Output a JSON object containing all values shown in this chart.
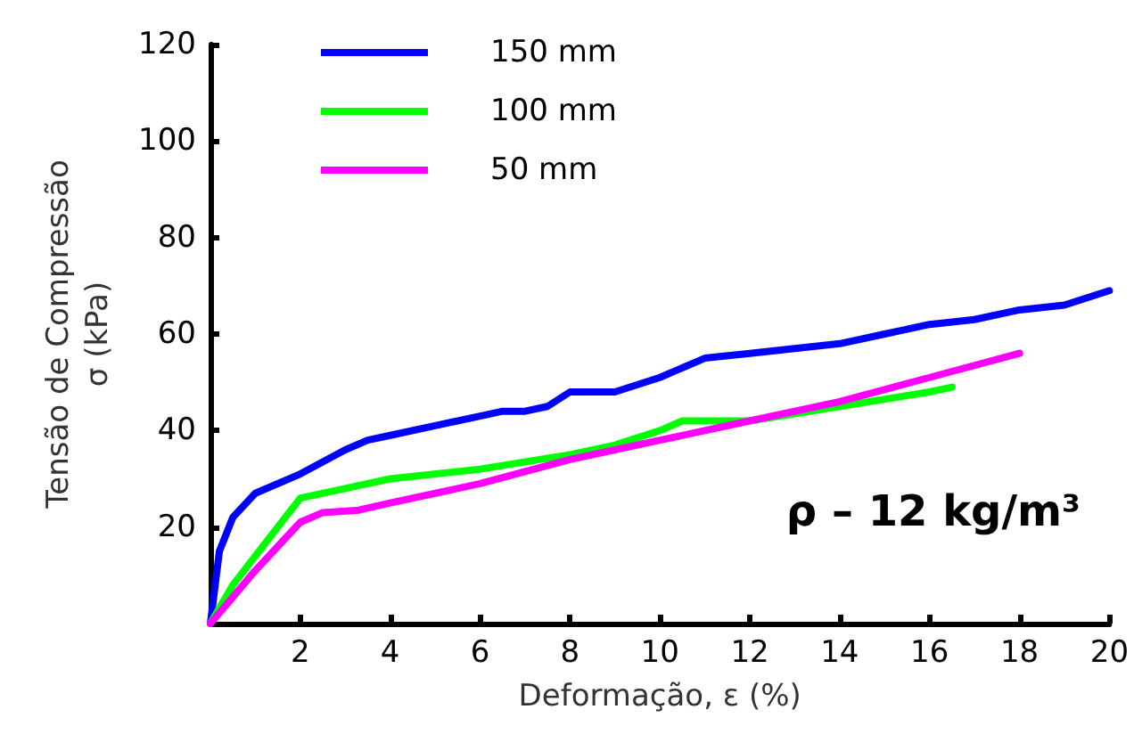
{
  "chart_data": {
    "type": "line",
    "xlabel": "Deformação, ε (%)",
    "ylabel": "Tensão de Compressão\nσ (kPa)",
    "annotations": [
      "ρ – 12 kg/m³"
    ],
    "xlim": [
      0,
      20
    ],
    "xticks": [
      2,
      4,
      6,
      8,
      10,
      12,
      14,
      16,
      18,
      20
    ],
    "ylim": [
      0,
      120
    ],
    "yticks": [
      {
        "value": 0,
        "label": null
      },
      20,
      40,
      60,
      80,
      100,
      120
    ],
    "grid": false,
    "legend": "top left",
    "marker": "none",
    "line_style": "solid",
    "series": [
      {
        "name": "150 mm",
        "color": "#0000ff",
        "x": [
          0,
          0.2,
          0.5,
          1,
          2,
          3,
          3.5,
          4,
          5,
          6,
          6.5,
          7,
          7.5,
          8,
          9,
          10,
          11,
          12,
          13,
          14,
          15,
          16,
          17,
          18,
          19,
          20
        ],
        "values": [
          0,
          15,
          22,
          27,
          31,
          36,
          38,
          39,
          41,
          43,
          44,
          44,
          45,
          48,
          48,
          51,
          55,
          56,
          57,
          58,
          60,
          62,
          63,
          65,
          66,
          69
        ]
      },
      {
        "name": "100 mm",
        "color": "#00ff00",
        "x": [
          0,
          0.5,
          1,
          2,
          3,
          4,
          6,
          8,
          9,
          10,
          10.5,
          12,
          14,
          16,
          16.5
        ],
        "values": [
          0,
          8,
          14,
          26,
          28,
          30,
          32,
          35,
          37,
          40,
          42,
          42,
          45,
          48,
          49
        ]
      },
      {
        "name": "50 mm",
        "color": "#ff00ff",
        "x": [
          0,
          1,
          2,
          2.5,
          3.3,
          4,
          6,
          8,
          10,
          12,
          14,
          16,
          18
        ],
        "values": [
          0,
          11,
          21,
          23,
          23.5,
          25,
          29,
          34,
          38,
          42,
          46,
          51,
          56
        ]
      }
    ]
  }
}
